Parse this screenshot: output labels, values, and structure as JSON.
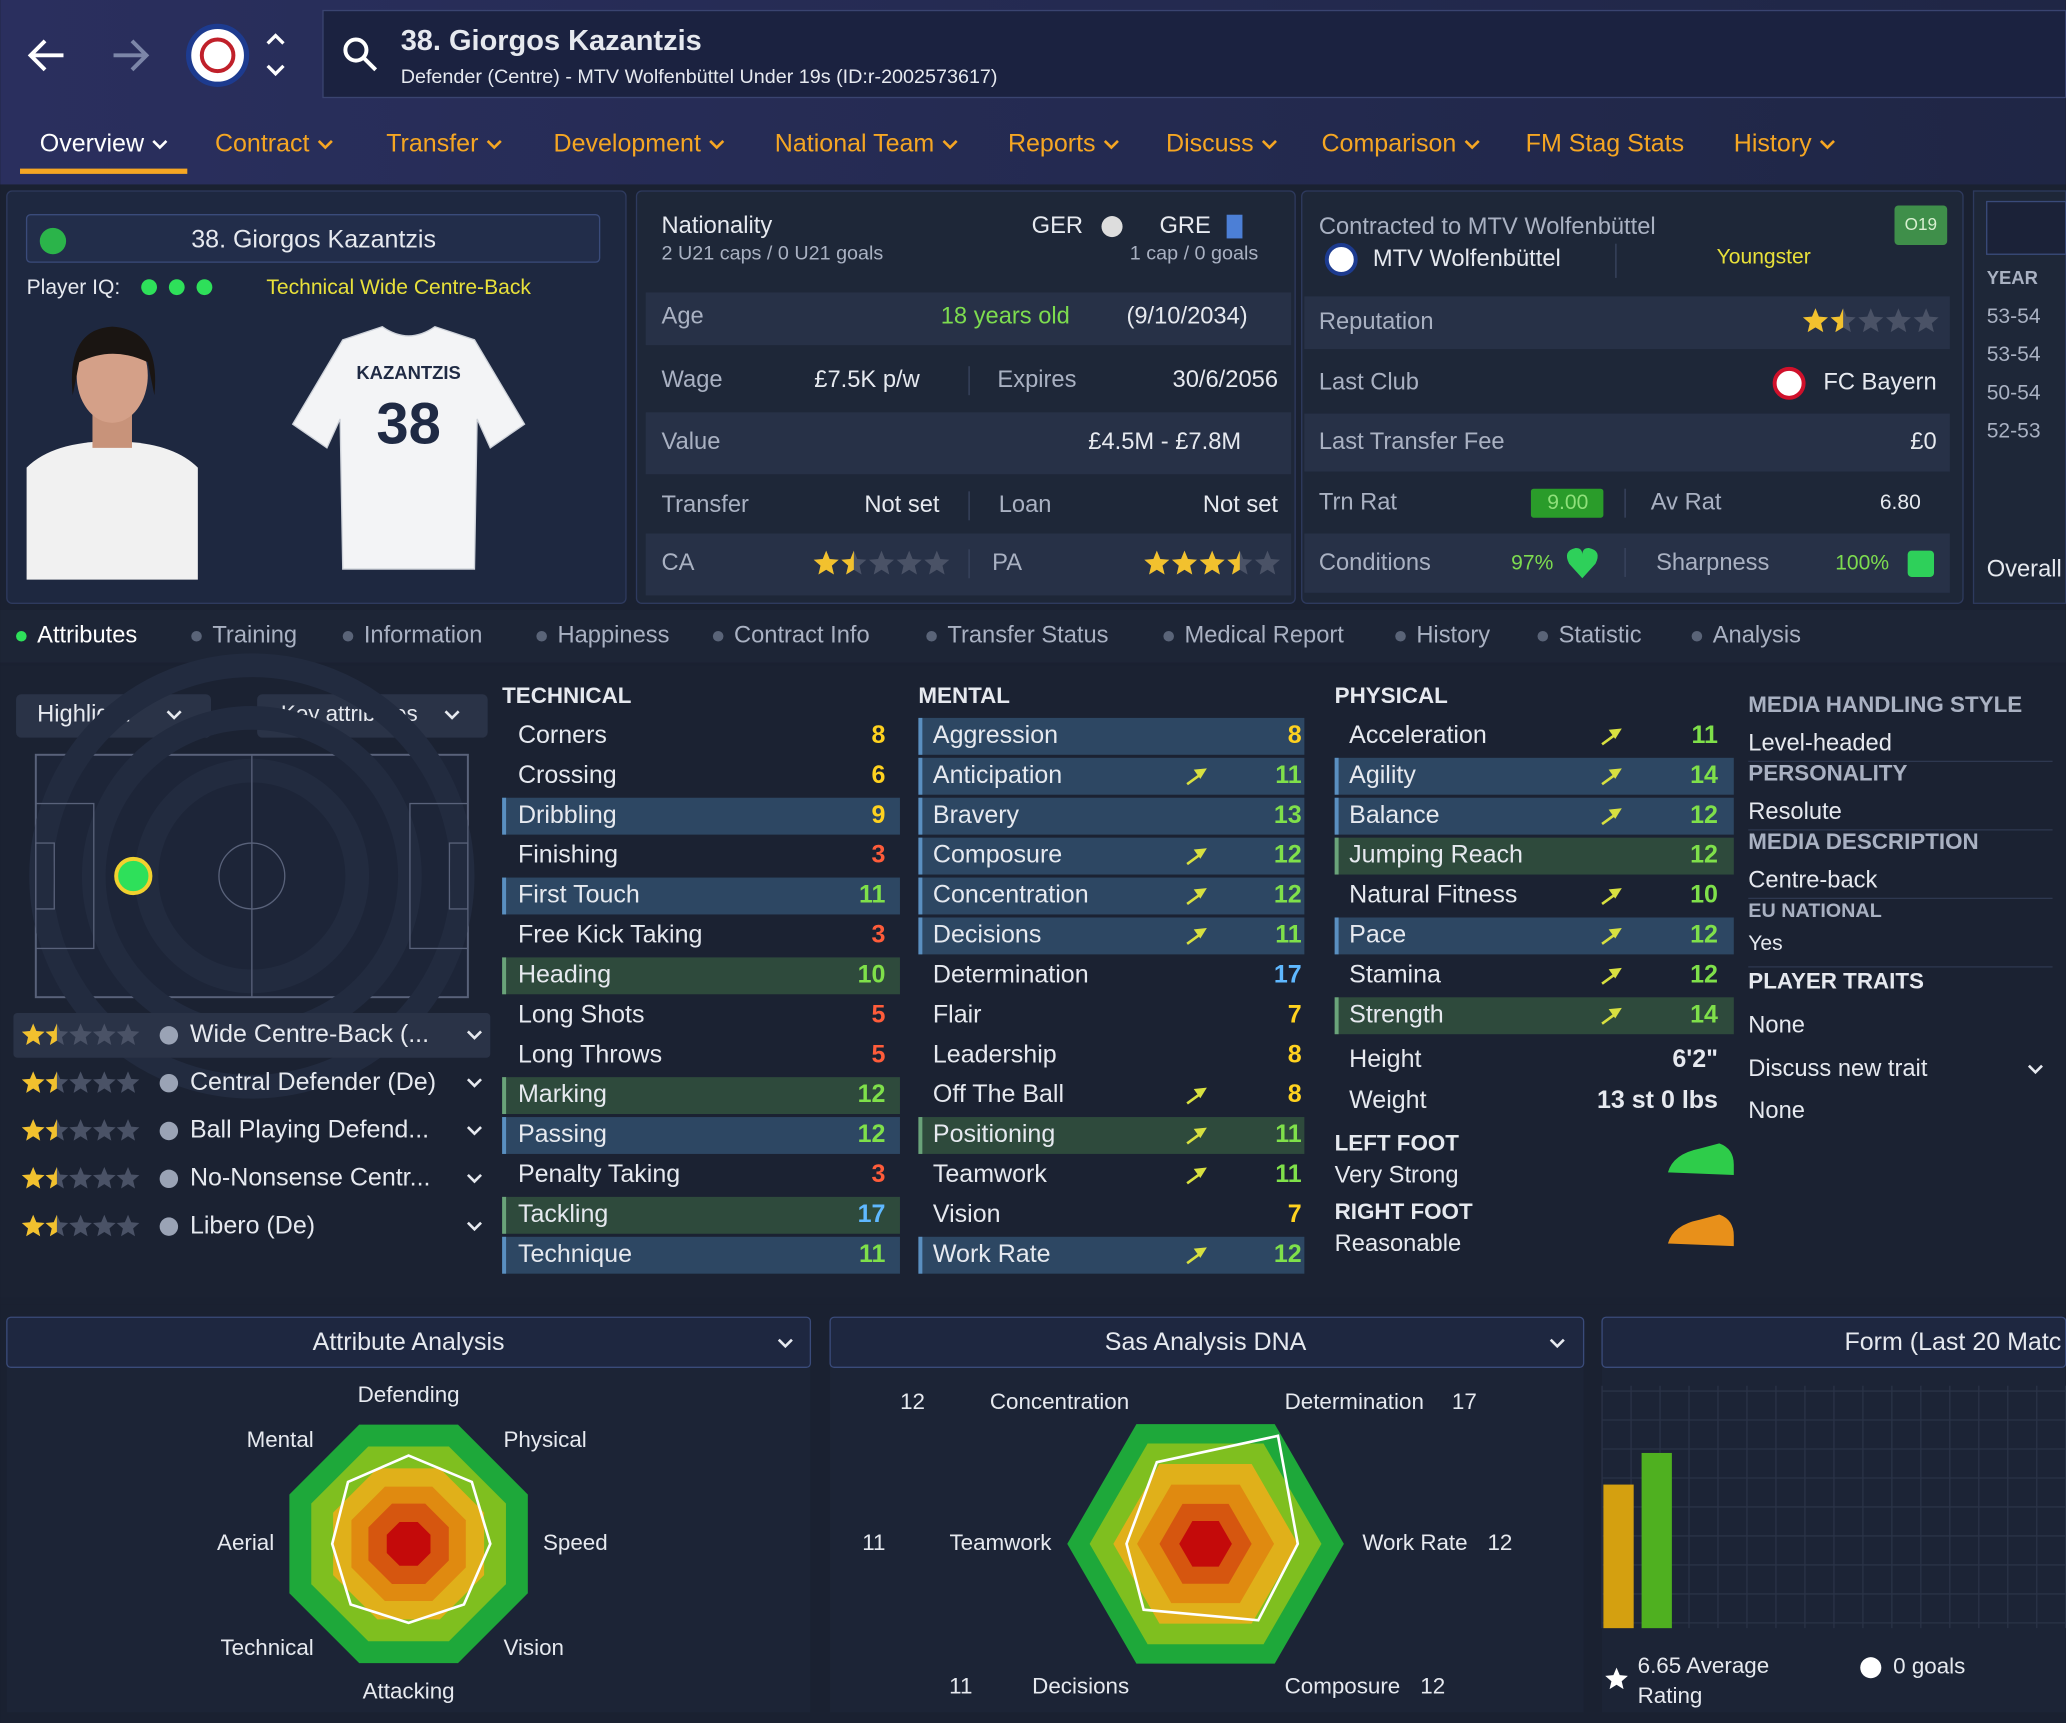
{
  "header": {
    "title": "38. Giorgos Kazantzis",
    "subtitle": "Defender (Centre) - MTV Wolfenbüttel Under 19s (ID:r-2002573617)"
  },
  "nav": [
    "Overview",
    "Contract",
    "Transfer",
    "Development",
    "National Team",
    "Reports",
    "Discuss",
    "Comparison",
    "FM Stag Stats",
    "History"
  ],
  "card": {
    "name": "38. Giorgos Kazantzis",
    "iq_label": "Player IQ:",
    "role": "Technical  Wide Centre-Back",
    "shirt_name": "KAZANTZIS",
    "shirt_number": "38"
  },
  "nationality": {
    "label": "Nationality",
    "first": "GER",
    "first_caps": "2 U21 caps / 0 U21 goals",
    "second": "GRE",
    "second_caps": "1 cap / 0 goals"
  },
  "details": {
    "age_label": "Age",
    "age": "18 years old",
    "dob": "(9/10/2034)",
    "wage_label": "Wage",
    "wage": "£7.5K p/w",
    "expires_label": "Expires",
    "expires": "30/6/2056",
    "value_label": "Value",
    "value": "£4.5M - £7.8M",
    "transfer_label": "Transfer",
    "transfer": "Not set",
    "loan_label": "Loan",
    "loan": "Not set",
    "ca_label": "CA",
    "ca_stars": 1.5,
    "pa_label": "PA",
    "pa_stars": 3.5
  },
  "contract": {
    "label": "Contracted to MTV Wolfenbüttel",
    "club": "MTV Wolfenbüttel",
    "status": "Youngster",
    "badge": "O19",
    "reputation_label": "Reputation",
    "reputation_stars": 1.5,
    "last_club_label": "Last Club",
    "last_club": "FC Bayern",
    "fee_label": "Last Transfer Fee",
    "fee": "£0",
    "trn_label": "Trn Rat",
    "trn": "9.00",
    "av_label": "Av Rat",
    "av": "6.80",
    "conditions_label": "Conditions",
    "conditions": "97%",
    "sharpness_label": "Sharpness",
    "sharpness": "100%"
  },
  "history": {
    "header": "YEAR",
    "years": [
      "53-54",
      "53-54",
      "50-54",
      "52-53"
    ],
    "footer": "Overall"
  },
  "subtabs": [
    "Attributes",
    "Training",
    "Information",
    "Happiness",
    "Contract Info",
    "Transfer Status",
    "Medical Report",
    "History",
    "Statistic",
    "Analysis"
  ],
  "controls": {
    "highlight": "Highlight",
    "key": "Key attributes"
  },
  "roles": [
    {
      "name": "Wide Centre-Back (...",
      "stars": 1.5
    },
    {
      "name": "Central Defender (De)",
      "stars": 1.5
    },
    {
      "name": "Ball Playing Defend...",
      "stars": 1.5
    },
    {
      "name": "No-Nonsense Centr...",
      "stars": 1.5
    },
    {
      "name": "Libero (De)",
      "stars": 1.5
    }
  ],
  "technical": {
    "title": "TECHNICAL",
    "rows": [
      {
        "name": "Corners",
        "value": 8
      },
      {
        "name": "Crossing",
        "value": 6
      },
      {
        "name": "Dribbling",
        "value": 9,
        "hl": "blue"
      },
      {
        "name": "Finishing",
        "value": 3
      },
      {
        "name": "First Touch",
        "value": 11,
        "hl": "blue"
      },
      {
        "name": "Free Kick Taking",
        "value": 3
      },
      {
        "name": "Heading",
        "value": 10,
        "hl": "green"
      },
      {
        "name": "Long Shots",
        "value": 5
      },
      {
        "name": "Long Throws",
        "value": 5
      },
      {
        "name": "Marking",
        "value": 12,
        "hl": "green"
      },
      {
        "name": "Passing",
        "value": 12,
        "hl": "blue"
      },
      {
        "name": "Penalty Taking",
        "value": 3
      },
      {
        "name": "Tackling",
        "value": 17,
        "hl": "green"
      },
      {
        "name": "Technique",
        "value": 11,
        "hl": "blue"
      }
    ]
  },
  "mental": {
    "title": "MENTAL",
    "rows": [
      {
        "name": "Aggression",
        "value": 8,
        "hl": "blue"
      },
      {
        "name": "Anticipation",
        "value": 11,
        "hl": "blue",
        "up": true
      },
      {
        "name": "Bravery",
        "value": 13,
        "hl": "blue"
      },
      {
        "name": "Composure",
        "value": 12,
        "hl": "blue",
        "up": true
      },
      {
        "name": "Concentration",
        "value": 12,
        "hl": "blue",
        "up": true
      },
      {
        "name": "Decisions",
        "value": 11,
        "hl": "blue",
        "up": true
      },
      {
        "name": "Determination",
        "value": 17
      },
      {
        "name": "Flair",
        "value": 7
      },
      {
        "name": "Leadership",
        "value": 8
      },
      {
        "name": "Off The Ball",
        "value": 8,
        "up": true
      },
      {
        "name": "Positioning",
        "value": 11,
        "hl": "green",
        "up": true
      },
      {
        "name": "Teamwork",
        "value": 11,
        "up": true
      },
      {
        "name": "Vision",
        "value": 7
      },
      {
        "name": "Work Rate",
        "value": 12,
        "hl": "blue",
        "up": true
      }
    ]
  },
  "physical": {
    "title": "PHYSICAL",
    "rows": [
      {
        "name": "Acceleration",
        "value": 11,
        "up": true
      },
      {
        "name": "Agility",
        "value": 14,
        "hl": "blue",
        "up": true
      },
      {
        "name": "Balance",
        "value": 12,
        "hl": "blue",
        "up": true
      },
      {
        "name": "Jumping Reach",
        "value": 12,
        "hl": "green"
      },
      {
        "name": "Natural Fitness",
        "value": 10,
        "up": true
      },
      {
        "name": "Pace",
        "value": 12,
        "hl": "blue",
        "up": true
      },
      {
        "name": "Stamina",
        "value": 12,
        "up": true
      },
      {
        "name": "Strength",
        "value": 14,
        "hl": "green",
        "up": true
      }
    ],
    "height_label": "Height",
    "height": "6'2\"",
    "weight_label": "Weight",
    "weight": "13 st 0 lbs",
    "left_foot_label": "LEFT FOOT",
    "left_foot": "Very Strong",
    "right_foot_label": "RIGHT FOOT",
    "right_foot": "Reasonable"
  },
  "profile": {
    "items": [
      {
        "label": "MEDIA HANDLING STYLE",
        "value": "Level-headed"
      },
      {
        "label": "PERSONALITY",
        "value": "Resolute"
      },
      {
        "label": "MEDIA DESCRIPTION",
        "value": "Centre-back"
      },
      {
        "label": "EU NATIONAL",
        "value": "Yes"
      }
    ],
    "traits_label": "PLAYER TRAITS",
    "traits": "None",
    "discuss": "Discuss new trait",
    "discuss_value": "None"
  },
  "attribute_analysis": {
    "title": "Attribute Analysis",
    "labels": [
      "Defending",
      "Physical",
      "Speed",
      "Vision",
      "Attacking",
      "Technical",
      "Aerial",
      "Mental"
    ]
  },
  "dna": {
    "title": "Sas Analysis DNA",
    "axes": [
      {
        "name": "Concentration",
        "value": 12
      },
      {
        "name": "Determination",
        "value": 17
      },
      {
        "name": "Work Rate",
        "value": 12
      },
      {
        "name": "Composure",
        "value": 12
      },
      {
        "name": "Decisions",
        "value": 11
      },
      {
        "name": "Teamwork",
        "value": 11
      }
    ]
  },
  "form": {
    "title": "Form (Last 20 Matc",
    "rating": "6.65 Average Rating",
    "goals": "0 goals"
  }
}
